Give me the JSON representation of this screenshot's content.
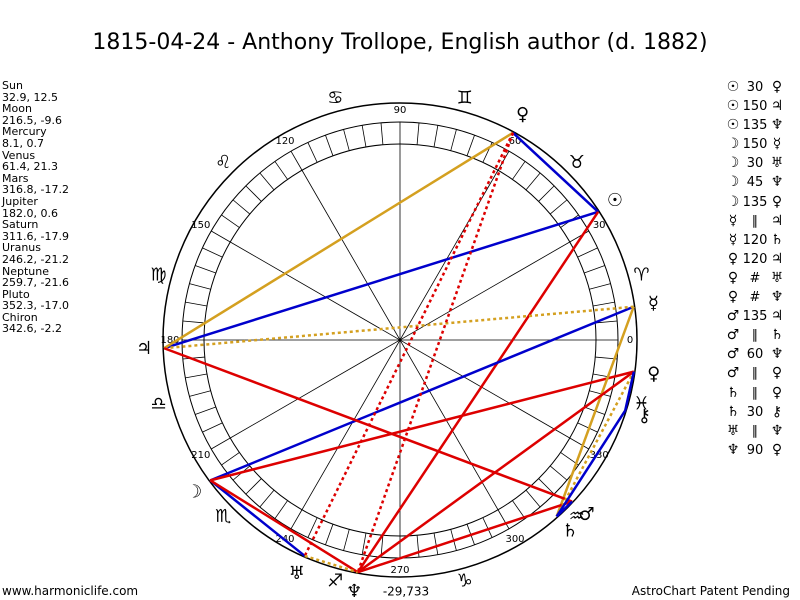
{
  "title": "1815-04-24 - Anthony Trollope, English author (d. 1882)",
  "planets": [
    {
      "name": "Sun",
      "coords": "32.9, 12.5",
      "glyph": "☉",
      "lon": 32.9
    },
    {
      "name": "Moon",
      "coords": "216.5, -9.6",
      "glyph": "☽",
      "lon": 216.5
    },
    {
      "name": "Mercury",
      "coords": "8.1, 0.7",
      "glyph": "☿",
      "lon": 8.1
    },
    {
      "name": "Venus",
      "coords": "61.4, 21.3",
      "glyph": "♀",
      "lon": 61.4
    },
    {
      "name": "Mars",
      "coords": "316.8, -17.2",
      "glyph": "♂",
      "lon": 316.8
    },
    {
      "name": "Jupiter",
      "coords": "182.0, 0.6",
      "glyph": "♃",
      "lon": 182.0
    },
    {
      "name": "Saturn",
      "coords": "311.6, -17.9",
      "glyph": "♄",
      "lon": 311.6
    },
    {
      "name": "Uranus",
      "coords": "246.2, -21.2",
      "glyph": "♅",
      "lon": 246.2
    },
    {
      "name": "Neptune",
      "coords": "259.7, -21.6",
      "glyph": "♆",
      "lon": 259.7
    },
    {
      "name": "Pluto",
      "coords": "352.3, -17.0",
      "glyph": "♀",
      "lon": 352.3
    },
    {
      "name": "Chiron",
      "coords": "342.6, -2.2",
      "glyph": "⚷",
      "lon": 342.6
    }
  ],
  "aspects": [
    {
      "g1": "☉",
      "asp": "30",
      "g2": "♀"
    },
    {
      "g1": "☉",
      "asp": "150",
      "g2": "♃"
    },
    {
      "g1": "☉",
      "asp": "135",
      "g2": "♆"
    },
    {
      "g1": "☽",
      "asp": "150",
      "g2": "☿"
    },
    {
      "g1": "☽",
      "asp": "30",
      "g2": "♅"
    },
    {
      "g1": "☽",
      "asp": "45",
      "g2": "♆"
    },
    {
      "g1": "☽",
      "asp": "135",
      "g2": "♀"
    },
    {
      "g1": "☿",
      "asp": "∥",
      "g2": "♃"
    },
    {
      "g1": "☿",
      "asp": "120",
      "g2": "♄"
    },
    {
      "g1": "♀",
      "asp": "120",
      "g2": "♃"
    },
    {
      "g1": "♀",
      "asp": "#",
      "g2": "♅"
    },
    {
      "g1": "♀",
      "asp": "#",
      "g2": "♆"
    },
    {
      "g1": "♂",
      "asp": "135",
      "g2": "♃"
    },
    {
      "g1": "♂",
      "asp": "∥",
      "g2": "♄"
    },
    {
      "g1": "♂",
      "asp": "60",
      "g2": "♆"
    },
    {
      "g1": "♂",
      "asp": "∥",
      "g2": "♀"
    },
    {
      "g1": "♄",
      "asp": "∥",
      "g2": "♀"
    },
    {
      "g1": "♄",
      "asp": "30",
      "g2": "⚷"
    },
    {
      "g1": "♅",
      "asp": "∥",
      "g2": "♆"
    },
    {
      "g1": "♆",
      "asp": "90",
      "g2": "♀"
    }
  ],
  "degree_labels": [
    {
      "text": "0",
      "deg": 0
    },
    {
      "text": "30",
      "deg": 30
    },
    {
      "text": "60",
      "deg": 60
    },
    {
      "text": "90",
      "deg": 90
    },
    {
      "text": "120",
      "deg": 120
    },
    {
      "text": "150",
      "deg": 150
    },
    {
      "text": "180",
      "deg": 180
    },
    {
      "text": "210",
      "deg": 210
    },
    {
      "text": "240",
      "deg": 240
    },
    {
      "text": "270",
      "deg": 270
    },
    {
      "text": "300",
      "deg": 300
    },
    {
      "text": "330",
      "deg": 330
    }
  ],
  "signs": [
    "♈",
    "♉",
    "♊",
    "♋",
    "♌",
    "♍",
    "♎",
    "♏",
    "♐",
    "♑",
    "♒",
    "♓"
  ],
  "extra_glyph_lon": {
    "♅_dup": 246.2
  },
  "bottom_value": "-29,733",
  "colors": {
    "blue": "#0000cc",
    "red": "#dd0000",
    "gold": "#d4a020"
  },
  "aspect_lines": [
    {
      "a": "Sun",
      "b": "Venus",
      "color": "blue",
      "style": "solid"
    },
    {
      "a": "Sun",
      "b": "Jupiter",
      "color": "blue",
      "style": "solid"
    },
    {
      "a": "Sun",
      "b": "Neptune",
      "color": "red",
      "style": "solid"
    },
    {
      "a": "Moon",
      "b": "Mercury",
      "color": "blue",
      "style": "solid"
    },
    {
      "a": "Moon",
      "b": "Uranus",
      "color": "blue",
      "style": "solid"
    },
    {
      "a": "Moon",
      "b": "Neptune",
      "color": "red",
      "style": "solid"
    },
    {
      "a": "Moon",
      "b": "Pluto",
      "color": "red",
      "style": "solid"
    },
    {
      "a": "Mercury",
      "b": "Jupiter",
      "color": "gold",
      "style": "dotted"
    },
    {
      "a": "Mercury",
      "b": "Saturn",
      "color": "gold",
      "style": "solid"
    },
    {
      "a": "Venus",
      "b": "Jupiter",
      "color": "gold",
      "style": "solid"
    },
    {
      "a": "Venus",
      "b": "Uranus",
      "color": "red",
      "style": "dotted"
    },
    {
      "a": "Venus",
      "b": "Neptune",
      "color": "red",
      "style": "dotted"
    },
    {
      "a": "Mars",
      "b": "Jupiter",
      "color": "red",
      "style": "solid"
    },
    {
      "a": "Mars",
      "b": "Neptune",
      "color": "red",
      "style": "solid"
    },
    {
      "a": "Saturn",
      "b": "Pluto",
      "color": "gold",
      "style": "dotted"
    },
    {
      "a": "Saturn",
      "b": "Chiron",
      "color": "blue",
      "style": "solid"
    },
    {
      "a": "Uranus",
      "b": "Neptune",
      "color": "gold",
      "style": "dotted"
    },
    {
      "a": "Neptune",
      "b": "Pluto",
      "color": "red",
      "style": "solid"
    },
    {
      "a": "Pluto",
      "b": "Chiron",
      "color": "blue",
      "style": "solid"
    },
    {
      "a": "Mars",
      "b": "Saturn",
      "color": "blue",
      "style": "solid"
    }
  ],
  "footer": {
    "left": "www.harmoniclife.com",
    "right": "AstroChart Patent Pending"
  }
}
